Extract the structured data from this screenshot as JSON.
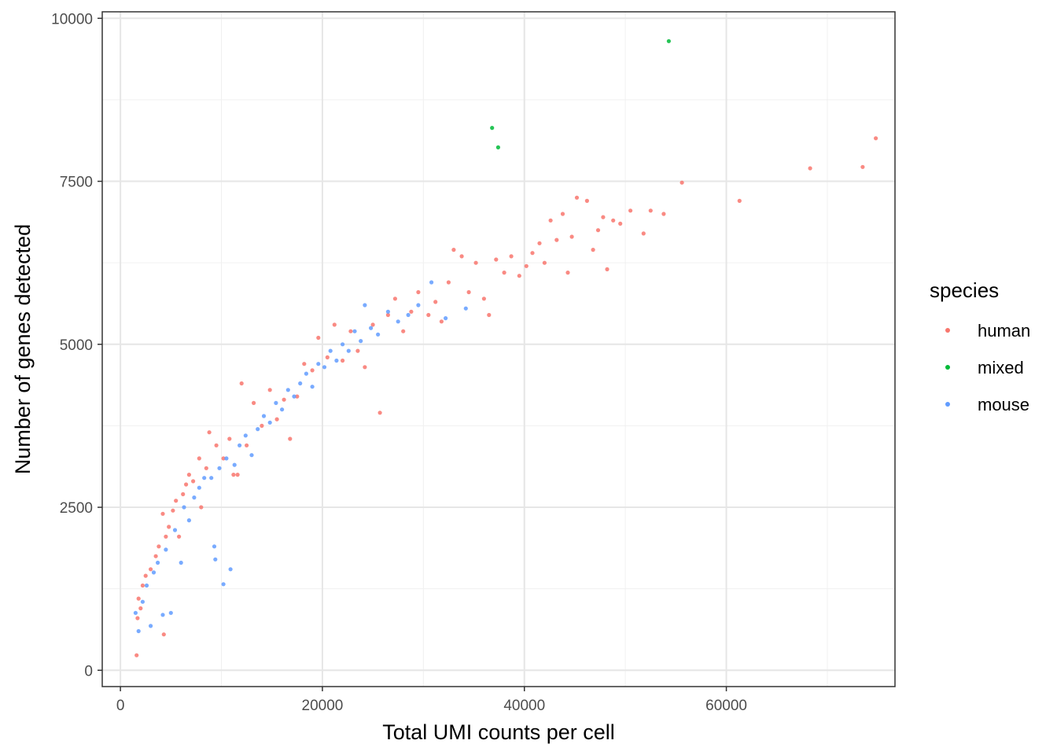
{
  "chart_data": {
    "type": "scatter",
    "xlabel": "Total UMI counts per cell",
    "ylabel": "Number of genes detected",
    "xlim": [
      -1800,
      76700
    ],
    "ylim": [
      -250,
      10100
    ],
    "x_ticks": [
      0,
      20000,
      40000,
      60000
    ],
    "x_tick_labels": [
      "0",
      "20000",
      "40000",
      "60000"
    ],
    "y_ticks": [
      0,
      2500,
      5000,
      7500,
      10000
    ],
    "y_tick_labels": [
      "0",
      "2500",
      "5000",
      "7500",
      "10000"
    ],
    "grid": true,
    "legend": {
      "title": "species",
      "position": "right",
      "entries": [
        {
          "label": "human",
          "color": "#F8766D"
        },
        {
          "label": "mixed",
          "color": "#00BA38"
        },
        {
          "label": "mouse",
          "color": "#619CFF"
        }
      ]
    },
    "series": [
      {
        "name": "human",
        "color": "#F8766D",
        "points": [
          [
            1600,
            230
          ],
          [
            1700,
            800
          ],
          [
            1800,
            1100
          ],
          [
            2000,
            950
          ],
          [
            2200,
            1300
          ],
          [
            2500,
            1450
          ],
          [
            3000,
            1550
          ],
          [
            3500,
            1750
          ],
          [
            3800,
            1900
          ],
          [
            4200,
            2400
          ],
          [
            4300,
            550
          ],
          [
            4500,
            2050
          ],
          [
            4800,
            2200
          ],
          [
            5200,
            2450
          ],
          [
            5500,
            2600
          ],
          [
            5800,
            2050
          ],
          [
            6200,
            2700
          ],
          [
            6500,
            2850
          ],
          [
            6800,
            3000
          ],
          [
            7200,
            2900
          ],
          [
            7800,
            3250
          ],
          [
            8000,
            2500
          ],
          [
            8500,
            3100
          ],
          [
            8800,
            3650
          ],
          [
            9500,
            3450
          ],
          [
            10200,
            3250
          ],
          [
            10800,
            3550
          ],
          [
            11200,
            3000
          ],
          [
            11600,
            3000
          ],
          [
            12000,
            4400
          ],
          [
            12500,
            3450
          ],
          [
            13200,
            4100
          ],
          [
            14000,
            3750
          ],
          [
            14800,
            4300
          ],
          [
            15500,
            3850
          ],
          [
            16200,
            4150
          ],
          [
            16800,
            3550
          ],
          [
            17500,
            4200
          ],
          [
            18200,
            4700
          ],
          [
            19000,
            4600
          ],
          [
            19600,
            5100
          ],
          [
            20500,
            4800
          ],
          [
            21200,
            5300
          ],
          [
            22000,
            4750
          ],
          [
            22800,
            5200
          ],
          [
            23500,
            4900
          ],
          [
            24200,
            4650
          ],
          [
            25000,
            5300
          ],
          [
            25700,
            3950
          ],
          [
            26500,
            5450
          ],
          [
            27200,
            5700
          ],
          [
            28000,
            5200
          ],
          [
            28800,
            5500
          ],
          [
            29500,
            5800
          ],
          [
            30500,
            5450
          ],
          [
            31200,
            5650
          ],
          [
            31800,
            5350
          ],
          [
            32500,
            5950
          ],
          [
            33000,
            6450
          ],
          [
            33800,
            6350
          ],
          [
            34500,
            5800
          ],
          [
            35200,
            6250
          ],
          [
            36000,
            5700
          ],
          [
            36500,
            5450
          ],
          [
            37200,
            6300
          ],
          [
            38000,
            6100
          ],
          [
            38700,
            6350
          ],
          [
            39500,
            6050
          ],
          [
            40200,
            6200
          ],
          [
            40800,
            6400
          ],
          [
            41500,
            6550
          ],
          [
            42000,
            6250
          ],
          [
            42600,
            6900
          ],
          [
            43200,
            6600
          ],
          [
            43800,
            7000
          ],
          [
            44300,
            6100
          ],
          [
            44700,
            6650
          ],
          [
            45200,
            7250
          ],
          [
            46200,
            7200
          ],
          [
            46800,
            6450
          ],
          [
            47300,
            6750
          ],
          [
            47800,
            6950
          ],
          [
            48200,
            6150
          ],
          [
            48800,
            6900
          ],
          [
            49500,
            6850
          ],
          [
            50500,
            7050
          ],
          [
            51800,
            6700
          ],
          [
            52500,
            7050
          ],
          [
            53800,
            7000
          ],
          [
            55600,
            7480
          ],
          [
            61300,
            7200
          ],
          [
            68300,
            7700
          ],
          [
            73500,
            7720
          ],
          [
            74800,
            8160
          ]
        ]
      },
      {
        "name": "mixed",
        "color": "#00BA38",
        "points": [
          [
            36800,
            8320
          ],
          [
            37400,
            8020
          ],
          [
            54300,
            9650
          ]
        ]
      },
      {
        "name": "mouse",
        "color": "#619CFF",
        "points": [
          [
            1500,
            880
          ],
          [
            1800,
            600
          ],
          [
            2200,
            1050
          ],
          [
            2600,
            1300
          ],
          [
            3000,
            680
          ],
          [
            3300,
            1500
          ],
          [
            3700,
            1650
          ],
          [
            4200,
            850
          ],
          [
            4500,
            1850
          ],
          [
            5000,
            880
          ],
          [
            5400,
            2150
          ],
          [
            6000,
            1650
          ],
          [
            6300,
            2500
          ],
          [
            6800,
            2300
          ],
          [
            7300,
            2650
          ],
          [
            7800,
            2800
          ],
          [
            8300,
            2950
          ],
          [
            9000,
            2950
          ],
          [
            9300,
            1900
          ],
          [
            9400,
            1700
          ],
          [
            9800,
            3100
          ],
          [
            10200,
            1320
          ],
          [
            10500,
            3250
          ],
          [
            10900,
            1550
          ],
          [
            11300,
            3150
          ],
          [
            11800,
            3450
          ],
          [
            12400,
            3600
          ],
          [
            13000,
            3300
          ],
          [
            13600,
            3700
          ],
          [
            14200,
            3900
          ],
          [
            14800,
            3800
          ],
          [
            15400,
            4100
          ],
          [
            16000,
            4000
          ],
          [
            16600,
            4300
          ],
          [
            17200,
            4200
          ],
          [
            17800,
            4400
          ],
          [
            18400,
            4550
          ],
          [
            19000,
            4350
          ],
          [
            19600,
            4700
          ],
          [
            20200,
            4650
          ],
          [
            20800,
            4900
          ],
          [
            21400,
            4750
          ],
          [
            22000,
            5000
          ],
          [
            22600,
            4900
          ],
          [
            23200,
            5200
          ],
          [
            23800,
            5050
          ],
          [
            24200,
            5600
          ],
          [
            24800,
            5250
          ],
          [
            25500,
            5150
          ],
          [
            26500,
            5500
          ],
          [
            27500,
            5350
          ],
          [
            28500,
            5450
          ],
          [
            29500,
            5600
          ],
          [
            30800,
            5950
          ],
          [
            32200,
            5400
          ],
          [
            34200,
            5550
          ]
        ]
      }
    ]
  }
}
